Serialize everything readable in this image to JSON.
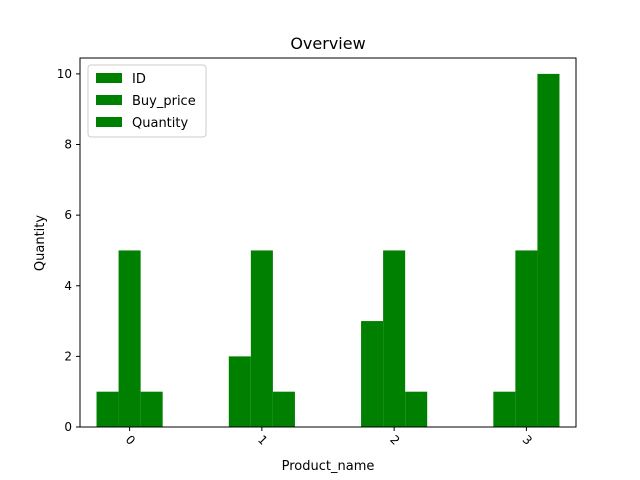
{
  "chart_data": {
    "type": "bar",
    "title": "Overview",
    "xlabel": "Product_name",
    "ylabel": "Quantity",
    "categories": [
      "0",
      "1",
      "2",
      "3"
    ],
    "series": [
      {
        "name": "ID",
        "values": [
          1,
          2,
          3,
          1
        ]
      },
      {
        "name": "Buy_price",
        "values": [
          5,
          5,
          5,
          5
        ]
      },
      {
        "name": "Quantity",
        "values": [
          1,
          1,
          1,
          10
        ]
      }
    ],
    "ylim": [
      0,
      10.45
    ],
    "yticks": [
      0,
      2,
      4,
      6,
      8,
      10
    ],
    "legend_position": "top-left",
    "bar_color": "#008000",
    "grid": false
  }
}
